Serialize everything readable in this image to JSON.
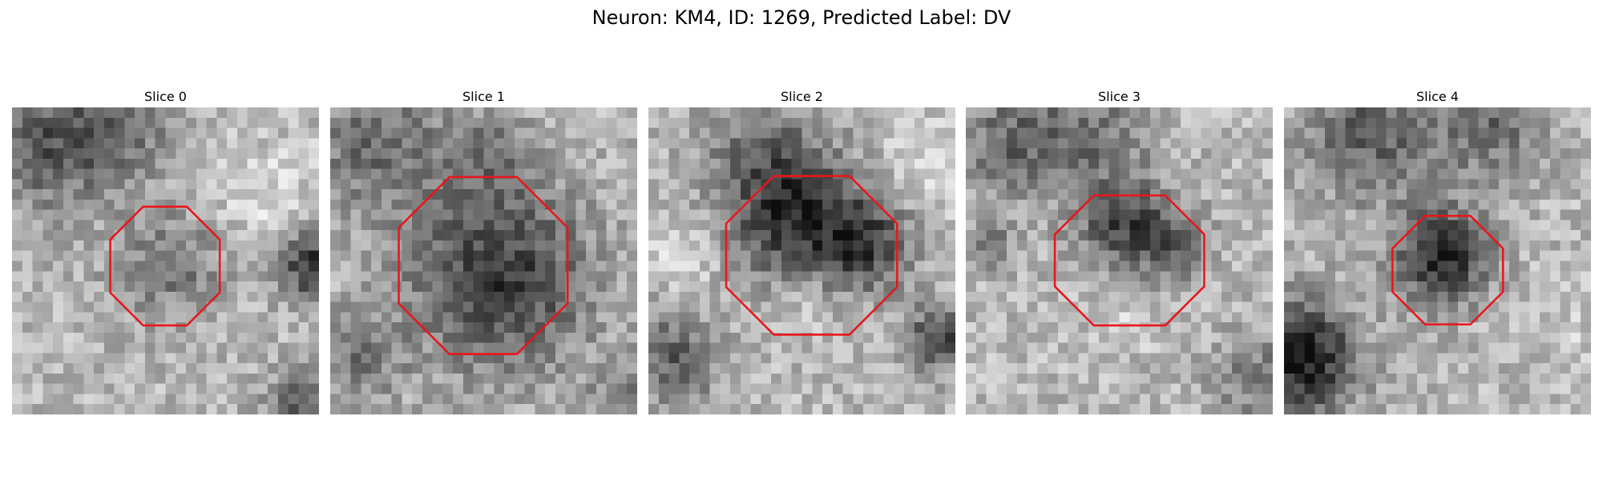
{
  "title": "Neuron: KM4, ID: 1269, Predicted Label: DV",
  "panels": [
    {
      "label": "Slice 0"
    },
    {
      "label": "Slice 1"
    },
    {
      "label": "Slice 2"
    },
    {
      "label": "Slice 3"
    },
    {
      "label": "Slice 4"
    }
  ]
}
